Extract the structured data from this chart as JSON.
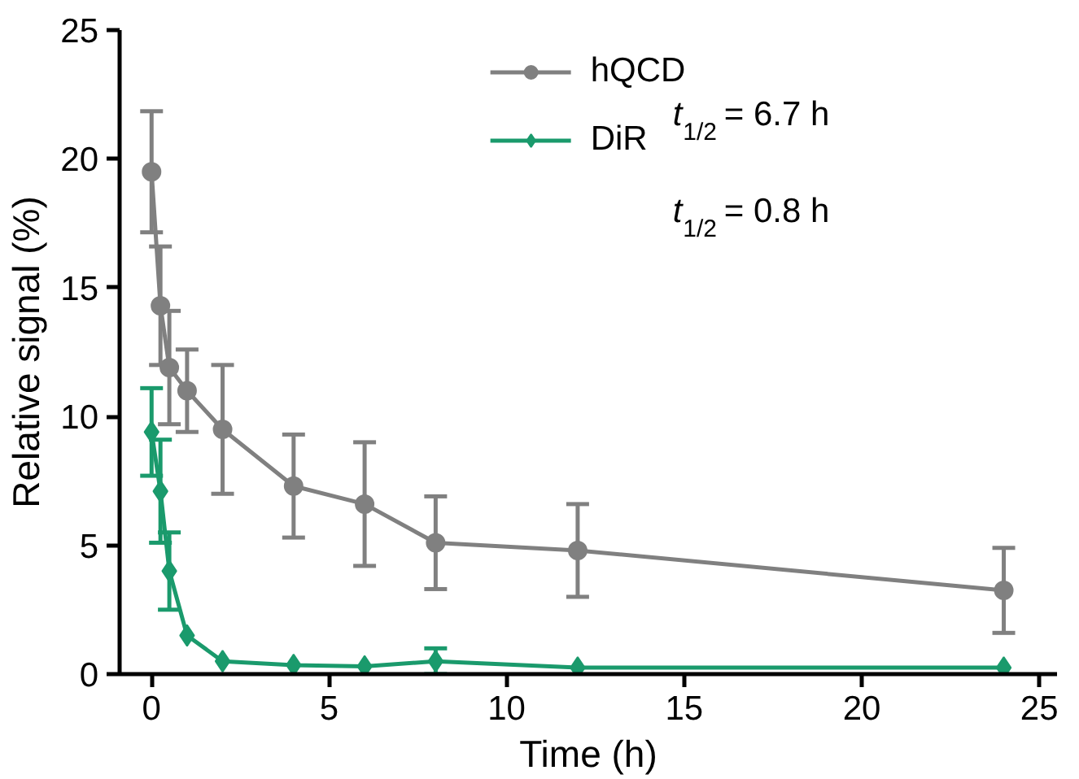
{
  "chart_data": {
    "type": "line",
    "xlabel": "Time (h)",
    "ylabel": "Relative signal (%)",
    "xlim": [
      -0.9,
      25.5
    ],
    "xticks": [
      0,
      5,
      10,
      15,
      20,
      25
    ],
    "ylim": [
      0,
      25
    ],
    "yticks": [
      0,
      5,
      10,
      15,
      20,
      25
    ],
    "grid": false,
    "legend": "top",
    "line_style": "solid",
    "x": [
      0,
      0.25,
      0.5,
      1,
      2,
      4,
      6,
      8,
      12,
      24
    ],
    "series": [
      {
        "name": "hQCD",
        "color": "#808080",
        "marker": "circle",
        "values": [
          19.5,
          14.3,
          11.9,
          11.0,
          9.5,
          7.3,
          6.6,
          5.1,
          4.8,
          3.25
        ],
        "errors": [
          2.35,
          2.3,
          2.2,
          1.6,
          2.5,
          2.0,
          2.4,
          1.8,
          1.8,
          1.65
        ]
      },
      {
        "name": "DiR",
        "color": "#1a9a6c",
        "marker": "diamond",
        "values": [
          9.4,
          7.1,
          4.0,
          1.5,
          0.5,
          0.35,
          0.3,
          0.5,
          0.25,
          0.25
        ],
        "errors": [
          1.7,
          2.0,
          1.5,
          null,
          null,
          null,
          null,
          0.5,
          null,
          null
        ]
      }
    ],
    "annotations": [
      "t$_{1/2}$ = 6.7 h",
      "t$_{1/2}$ = 0.8 h"
    ]
  }
}
